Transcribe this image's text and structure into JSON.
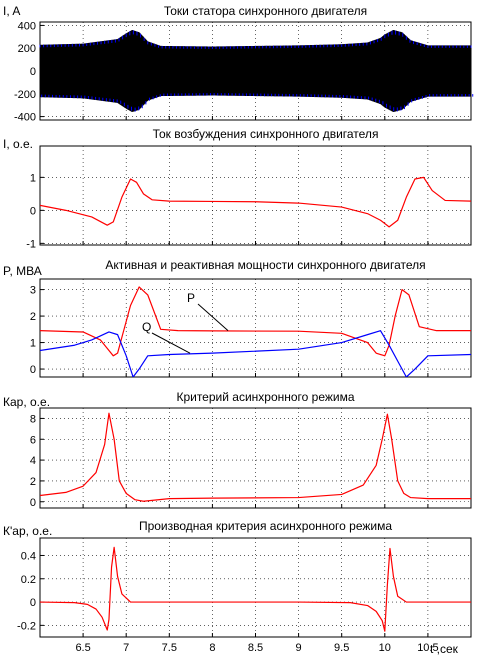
{
  "chart_data": [
    {
      "type": "line",
      "title": "Токи статора синхронного двигателя",
      "ylabel": "I, A",
      "xlim": [
        6,
        11
      ],
      "ylim": [
        -430,
        430
      ],
      "yticks": [
        "400",
        "200",
        "0",
        "-200",
        "-400"
      ],
      "ytick_values": [
        400,
        200,
        0,
        -200,
        -400
      ],
      "grid": true,
      "colors": [
        "#000000",
        "#0000ff"
      ],
      "envelope": {
        "x": [
          6.0,
          6.5,
          6.9,
          7.0,
          7.07,
          7.15,
          7.25,
          7.4,
          8.0,
          8.5,
          9.0,
          9.5,
          9.8,
          9.95,
          10.0,
          10.1,
          10.2,
          10.3,
          10.5,
          11.0
        ],
        "y": [
          230,
          240,
          280,
          330,
          360,
          340,
          260,
          220,
          215,
          220,
          225,
          235,
          250,
          290,
          320,
          360,
          340,
          270,
          225,
          225
        ]
      }
    },
    {
      "type": "line",
      "title": "Ток возбуждения синхронного двигателя",
      "ylabel": "I, о.е.",
      "xlim": [
        6,
        11
      ],
      "ylim": [
        -1.05,
        1.95
      ],
      "yticks": [
        "1",
        "0",
        "-1"
      ],
      "ytick_values": [
        1,
        0,
        -1
      ],
      "grid": true,
      "series": [
        {
          "color": "#ff0000",
          "x": [
            6.0,
            6.3,
            6.6,
            6.78,
            6.85,
            6.95,
            7.05,
            7.12,
            7.2,
            7.3,
            7.5,
            8.0,
            8.5,
            9.0,
            9.5,
            9.8,
            9.95,
            10.05,
            10.15,
            10.25,
            10.35,
            10.45,
            10.55,
            10.7,
            11.0
          ],
          "y": [
            0.15,
            0.0,
            -0.2,
            -0.45,
            -0.35,
            0.4,
            0.95,
            0.85,
            0.5,
            0.32,
            0.28,
            0.27,
            0.26,
            0.22,
            0.1,
            -0.1,
            -0.3,
            -0.5,
            -0.3,
            0.4,
            0.95,
            1.0,
            0.6,
            0.3,
            0.28
          ]
        }
      ]
    },
    {
      "type": "line",
      "title": "Активная и реактивная мощности синхронного двигателя",
      "ylabel": "P, МВА",
      "xlim": [
        6,
        11
      ],
      "ylim": [
        -0.3,
        3.4
      ],
      "yticks": [
        "3",
        "2",
        "1",
        "0"
      ],
      "ytick_values": [
        3,
        2,
        1,
        0
      ],
      "grid": true,
      "annotations": [
        "P",
        "Q"
      ],
      "series": [
        {
          "color": "#ff0000",
          "x": [
            6.0,
            6.5,
            6.7,
            6.8,
            6.85,
            6.9,
            6.95,
            7.05,
            7.15,
            7.25,
            7.4,
            7.6,
            8.0,
            9.0,
            9.5,
            9.8,
            9.9,
            10.0,
            10.05,
            10.12,
            10.2,
            10.28,
            10.4,
            10.6,
            11.0
          ],
          "y": [
            1.45,
            1.4,
            1.1,
            0.7,
            0.5,
            0.6,
            1.2,
            2.4,
            3.1,
            2.8,
            1.5,
            1.45,
            1.44,
            1.43,
            1.35,
            1.0,
            0.6,
            0.5,
            0.9,
            2.0,
            3.0,
            2.8,
            1.6,
            1.45,
            1.45
          ]
        },
        {
          "color": "#0000ff",
          "x": [
            6.0,
            6.4,
            6.6,
            6.8,
            6.9,
            7.0,
            7.08,
            7.15,
            7.25,
            7.5,
            8.0,
            9.0,
            9.5,
            9.8,
            9.95,
            10.05,
            10.15,
            10.25,
            10.35,
            10.5,
            11.0
          ],
          "y": [
            0.7,
            0.9,
            1.1,
            1.4,
            1.3,
            0.5,
            -0.3,
            0.0,
            0.5,
            0.55,
            0.6,
            0.75,
            1.0,
            1.3,
            1.45,
            0.9,
            0.3,
            -0.3,
            0.0,
            0.5,
            0.55
          ]
        }
      ]
    },
    {
      "type": "line",
      "title": "Критерий асинхронного режима",
      "ylabel": "Кар, о.е.",
      "xlim": [
        6,
        11
      ],
      "ylim": [
        -0.6,
        9
      ],
      "yticks": [
        "8",
        "6",
        "4",
        "2",
        "0"
      ],
      "ytick_values": [
        8,
        6,
        4,
        2,
        0
      ],
      "grid": true,
      "series": [
        {
          "color": "#ff0000",
          "x": [
            6.0,
            6.3,
            6.5,
            6.65,
            6.75,
            6.8,
            6.86,
            6.92,
            7.0,
            7.1,
            7.2,
            7.5,
            8.0,
            9.0,
            9.5,
            9.75,
            9.9,
            9.97,
            10.03,
            10.08,
            10.15,
            10.22,
            10.3,
            10.5,
            11.0
          ],
          "y": [
            0.6,
            0.9,
            1.5,
            2.8,
            5.5,
            8.5,
            6.0,
            2.0,
            0.8,
            0.2,
            0.05,
            0.3,
            0.35,
            0.4,
            0.7,
            1.6,
            3.5,
            6.0,
            8.4,
            6.0,
            2.0,
            0.8,
            0.4,
            0.3,
            0.3
          ]
        }
      ]
    },
    {
      "type": "line",
      "title": "Производная критерия асинхронного режима",
      "ylabel": "К'ар, о.е.",
      "xlim": [
        6,
        11
      ],
      "xlabel": "t ,сек",
      "xticks": [
        "6.5",
        "7",
        "7.5",
        "8",
        "8.5",
        "9",
        "9.5",
        "10",
        "10.5"
      ],
      "xtick_values": [
        6.5,
        7,
        7.5,
        8,
        8.5,
        9,
        9.5,
        10,
        10.5
      ],
      "ylim": [
        -0.3,
        0.55
      ],
      "yticks": [
        "0.4",
        "0.2",
        "0",
        "-0.2"
      ],
      "ytick_values": [
        0.4,
        0.2,
        0,
        -0.2
      ],
      "grid": true,
      "series": [
        {
          "color": "#ff0000",
          "x": [
            6.0,
            6.4,
            6.55,
            6.65,
            6.72,
            6.78,
            6.8,
            6.83,
            6.86,
            6.9,
            6.95,
            7.05,
            7.2,
            8.0,
            9.0,
            9.6,
            9.8,
            9.9,
            9.97,
            10.0,
            10.03,
            10.06,
            10.1,
            10.15,
            10.25,
            10.5,
            11.0
          ],
          "y": [
            0.0,
            -0.005,
            -0.02,
            -0.06,
            -0.13,
            -0.24,
            -0.15,
            0.3,
            0.47,
            0.22,
            0.07,
            0.0,
            0.0,
            0.0,
            0.0,
            -0.005,
            -0.03,
            -0.08,
            -0.16,
            -0.25,
            0.15,
            0.46,
            0.22,
            0.05,
            0.0,
            0.0,
            0.0
          ]
        }
      ]
    }
  ]
}
